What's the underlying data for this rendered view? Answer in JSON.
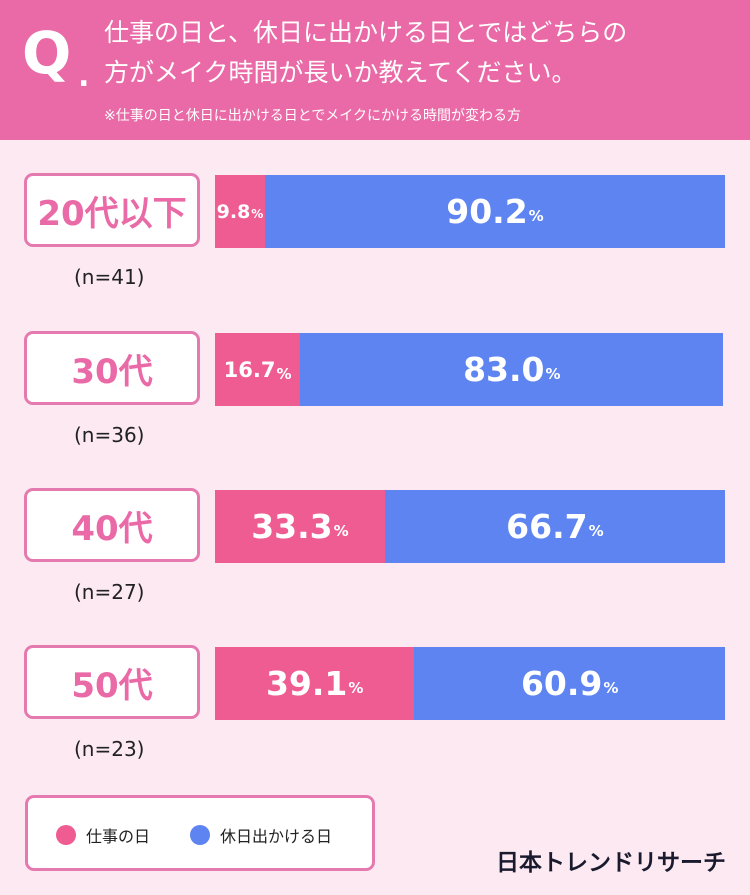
{
  "header": {
    "q_mark": "Q",
    "q_dot": ".",
    "title_line1": "仕事の日と、休日に出かける日とではどちらの",
    "title_line2": "方がメイク時間が長いか教えてください。",
    "subtitle": "※仕事の日と休日に出かける日とでメイクにかける時間が変わる方"
  },
  "colors": {
    "header_bg": "#e96aa6",
    "page_bg": "#fce9f2",
    "work": "#ee5c92",
    "holiday": "#5d84f0"
  },
  "chart_data": {
    "type": "bar",
    "orientation": "horizontal-stacked-100",
    "categories": [
      "20代以下",
      "30代",
      "40代",
      "50代"
    ],
    "sample_sizes": [
      "(n=41)",
      "(n=36)",
      "(n=27)",
      "(n=23)"
    ],
    "series": [
      {
        "name": "仕事の日",
        "values": [
          9.8,
          16.7,
          33.3,
          39.1
        ]
      },
      {
        "name": "休日出かける日",
        "values": [
          90.2,
          83.0,
          66.7,
          60.9
        ]
      }
    ],
    "value_labels": [
      [
        "9.8",
        "90.2"
      ],
      [
        "16.7",
        "83.0"
      ],
      [
        "33.3",
        "66.7"
      ],
      [
        "39.1",
        "60.9"
      ]
    ],
    "unit": "%",
    "legend_position": "bottom-left"
  },
  "legend": {
    "work_label": "仕事の日",
    "holiday_label": "休日出かける日"
  },
  "brand": "日本トレンドリサーチ"
}
